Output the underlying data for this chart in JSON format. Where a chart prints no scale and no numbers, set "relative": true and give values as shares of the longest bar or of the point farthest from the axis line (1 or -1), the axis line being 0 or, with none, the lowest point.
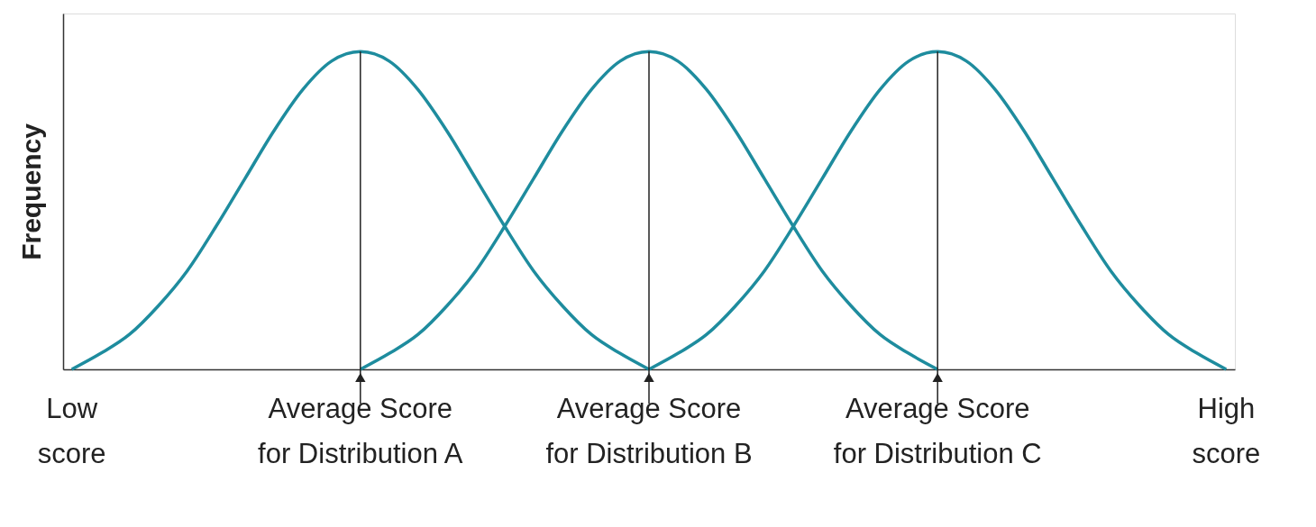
{
  "chart_data": {
    "type": "line",
    "relative": true,
    "ylabel": "Frequency",
    "categories": [
      "Low score",
      null,
      null,
      null,
      null,
      null,
      null,
      null,
      null,
      null,
      "Average Score for Distribution A",
      null,
      null,
      null,
      null,
      null,
      null,
      null,
      null,
      null,
      "Average Score for Distribution B",
      null,
      null,
      null,
      null,
      null,
      null,
      null,
      null,
      null,
      "Average Score for Distribution C",
      null,
      null,
      null,
      null,
      null,
      null,
      null,
      null,
      null,
      "High score"
    ],
    "series": [
      {
        "color": "#1e8c9e",
        "values": [
          0,
          0.05,
          0.11,
          0.2,
          0.31,
          0.45,
          0.6,
          0.75,
          0.88,
          0.97,
          1,
          0.97,
          0.88,
          0.75,
          0.6,
          0.45,
          0.31,
          0.2,
          0.11,
          0.05,
          0,
          null,
          null,
          null,
          null,
          null,
          null,
          null,
          null,
          null,
          null,
          null,
          null,
          null,
          null,
          null,
          null,
          null,
          null,
          null,
          null
        ]
      },
      {
        "color": "#1e8c9e",
        "values": [
          null,
          null,
          null,
          null,
          null,
          null,
          null,
          null,
          null,
          null,
          0,
          0.05,
          0.11,
          0.2,
          0.31,
          0.45,
          0.6,
          0.75,
          0.88,
          0.97,
          1,
          0.97,
          0.88,
          0.75,
          0.6,
          0.45,
          0.31,
          0.2,
          0.11,
          0.05,
          0,
          null,
          null,
          null,
          null,
          null,
          null,
          null,
          null,
          null,
          null
        ]
      },
      {
        "color": "#1e8c9e",
        "values": [
          null,
          null,
          null,
          null,
          null,
          null,
          null,
          null,
          null,
          null,
          null,
          null,
          null,
          null,
          null,
          null,
          null,
          null,
          null,
          null,
          0,
          0.05,
          0.11,
          0.2,
          0.31,
          0.45,
          0.6,
          0.75,
          0.88,
          0.97,
          1,
          0.97,
          0.88,
          0.75,
          0.6,
          0.45,
          0.31,
          0.2,
          0.11,
          0.05,
          0
        ]
      }
    ],
    "ref_lines": [
      {
        "axis": "x",
        "value": "Average Score for Distribution A",
        "color": "#222222"
      },
      {
        "axis": "x",
        "value": "Average Score for Distribution B",
        "color": "#222222"
      },
      {
        "axis": "x",
        "value": "Average Score for Distribution C",
        "color": "#222222"
      }
    ]
  }
}
